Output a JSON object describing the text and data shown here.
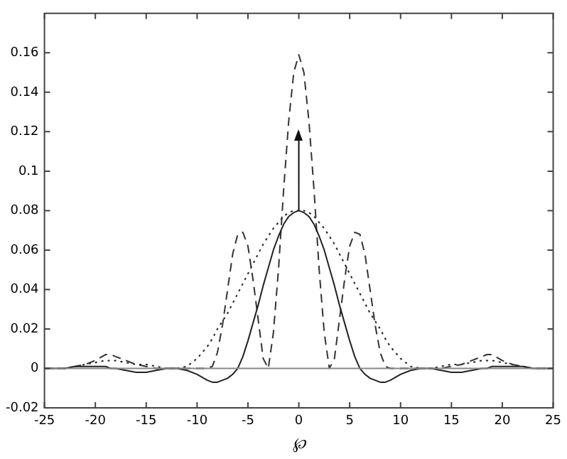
{
  "chart_data": {
    "type": "line",
    "xlabel": "℘",
    "x": [
      -25,
      -23,
      -22,
      -21,
      -20,
      -19,
      -18.5,
      -18,
      -17,
      -16,
      -15,
      -14,
      -13,
      -12,
      -11,
      -10,
      -9,
      -8.5,
      -8,
      -7.5,
      -7,
      -6.5,
      -6,
      -5.5,
      -5,
      -4.5,
      -4,
      -3.5,
      -3,
      -2.5,
      -2,
      -1.5,
      -1,
      -0.5,
      0,
      0.5,
      1,
      1.5,
      2,
      2.5,
      3,
      3.5,
      4,
      4.5,
      5,
      5.5,
      6,
      6.5,
      7,
      7.5,
      8,
      8.5,
      9,
      10,
      11,
      12,
      13,
      14,
      15,
      16,
      17,
      18,
      18.5,
      19,
      20,
      21,
      22,
      23,
      25
    ],
    "series": [
      {
        "color": "#222222",
        "line_style": "solid",
        "values": [
          0,
          0,
          0.001,
          0.001,
          0.001,
          0.001,
          0,
          0,
          -0.001,
          -0.002,
          -0.002,
          -0.001,
          0,
          0,
          -0.001,
          -0.003,
          -0.006,
          -0.007,
          -0.007,
          -0.006,
          -0.005,
          -0.003,
          0,
          0.006,
          0.014,
          0.023,
          0.032,
          0.042,
          0.051,
          0.06,
          0.067,
          0.073,
          0.077,
          0.079,
          0.08,
          0.079,
          0.077,
          0.073,
          0.067,
          0.06,
          0.051,
          0.042,
          0.032,
          0.023,
          0.014,
          0.006,
          0,
          -0.003,
          -0.005,
          -0.006,
          -0.007,
          -0.007,
          -0.006,
          -0.003,
          -0.001,
          0,
          0,
          -0.001,
          -0.002,
          -0.002,
          -0.001,
          0,
          0,
          0.001,
          0.001,
          0.001,
          0.001,
          0,
          0
        ]
      },
      {
        "color": "#333333",
        "line_style": "dashed",
        "values": [
          0,
          0,
          0.001,
          0.002,
          0.004,
          0.007,
          0.007,
          0.006,
          0.004,
          0.002,
          0.001,
          0,
          0,
          0,
          0,
          0,
          0,
          0.001,
          0.008,
          0.022,
          0.04,
          0.058,
          0.068,
          0.069,
          0.062,
          0.045,
          0.025,
          0.005,
          0,
          0.018,
          0.05,
          0.09,
          0.125,
          0.15,
          0.159,
          0.15,
          0.125,
          0.09,
          0.05,
          0.018,
          0,
          0.005,
          0.025,
          0.045,
          0.062,
          0.069,
          0.068,
          0.058,
          0.04,
          0.022,
          0.008,
          0.001,
          0,
          0,
          0,
          0,
          0,
          0,
          0.001,
          0.002,
          0.004,
          0.006,
          0.007,
          0.007,
          0.004,
          0.002,
          0.001,
          0,
          0
        ]
      },
      {
        "color": "#222222",
        "line_style": "dotted",
        "values": [
          0,
          0,
          0.001,
          0.002,
          0.003,
          0.004,
          0.004,
          0.004,
          0.003,
          0.002,
          0.002,
          0.001,
          0,
          0,
          0.001,
          0.005,
          0.011,
          0.015,
          0.02,
          0.024,
          0.028,
          0.033,
          0.038,
          0.043,
          0.048,
          0.053,
          0.058,
          0.063,
          0.067,
          0.071,
          0.074,
          0.077,
          0.079,
          0.08,
          0.08,
          0.08,
          0.079,
          0.077,
          0.074,
          0.071,
          0.067,
          0.063,
          0.058,
          0.053,
          0.048,
          0.043,
          0.038,
          0.033,
          0.028,
          0.024,
          0.02,
          0.015,
          0.011,
          0.005,
          0.001,
          0,
          0,
          0.001,
          0.002,
          0.002,
          0.003,
          0.004,
          0.004,
          0.004,
          0.003,
          0.002,
          0.001,
          0,
          0
        ]
      },
      {
        "color": "#111111",
        "line_style": "solid",
        "x": [
          0,
          0
        ],
        "values": [
          0.08,
          0.12
        ]
      }
    ],
    "ref_lines": [
      {
        "axis": "y",
        "value": 0,
        "color": "#888888"
      }
    ],
    "xlim": [
      -25,
      25
    ],
    "xticks": [
      -25,
      -20,
      -15,
      -10,
      -5,
      0,
      5,
      10,
      15,
      20,
      25
    ],
    "ylim": [
      -0.02,
      0.18
    ],
    "yticks": [
      -0.02,
      0,
      0.02,
      0.04,
      0.06,
      0.08,
      0.1,
      0.12,
      0.14,
      0.16
    ],
    "grid": false,
    "legend": false
  }
}
